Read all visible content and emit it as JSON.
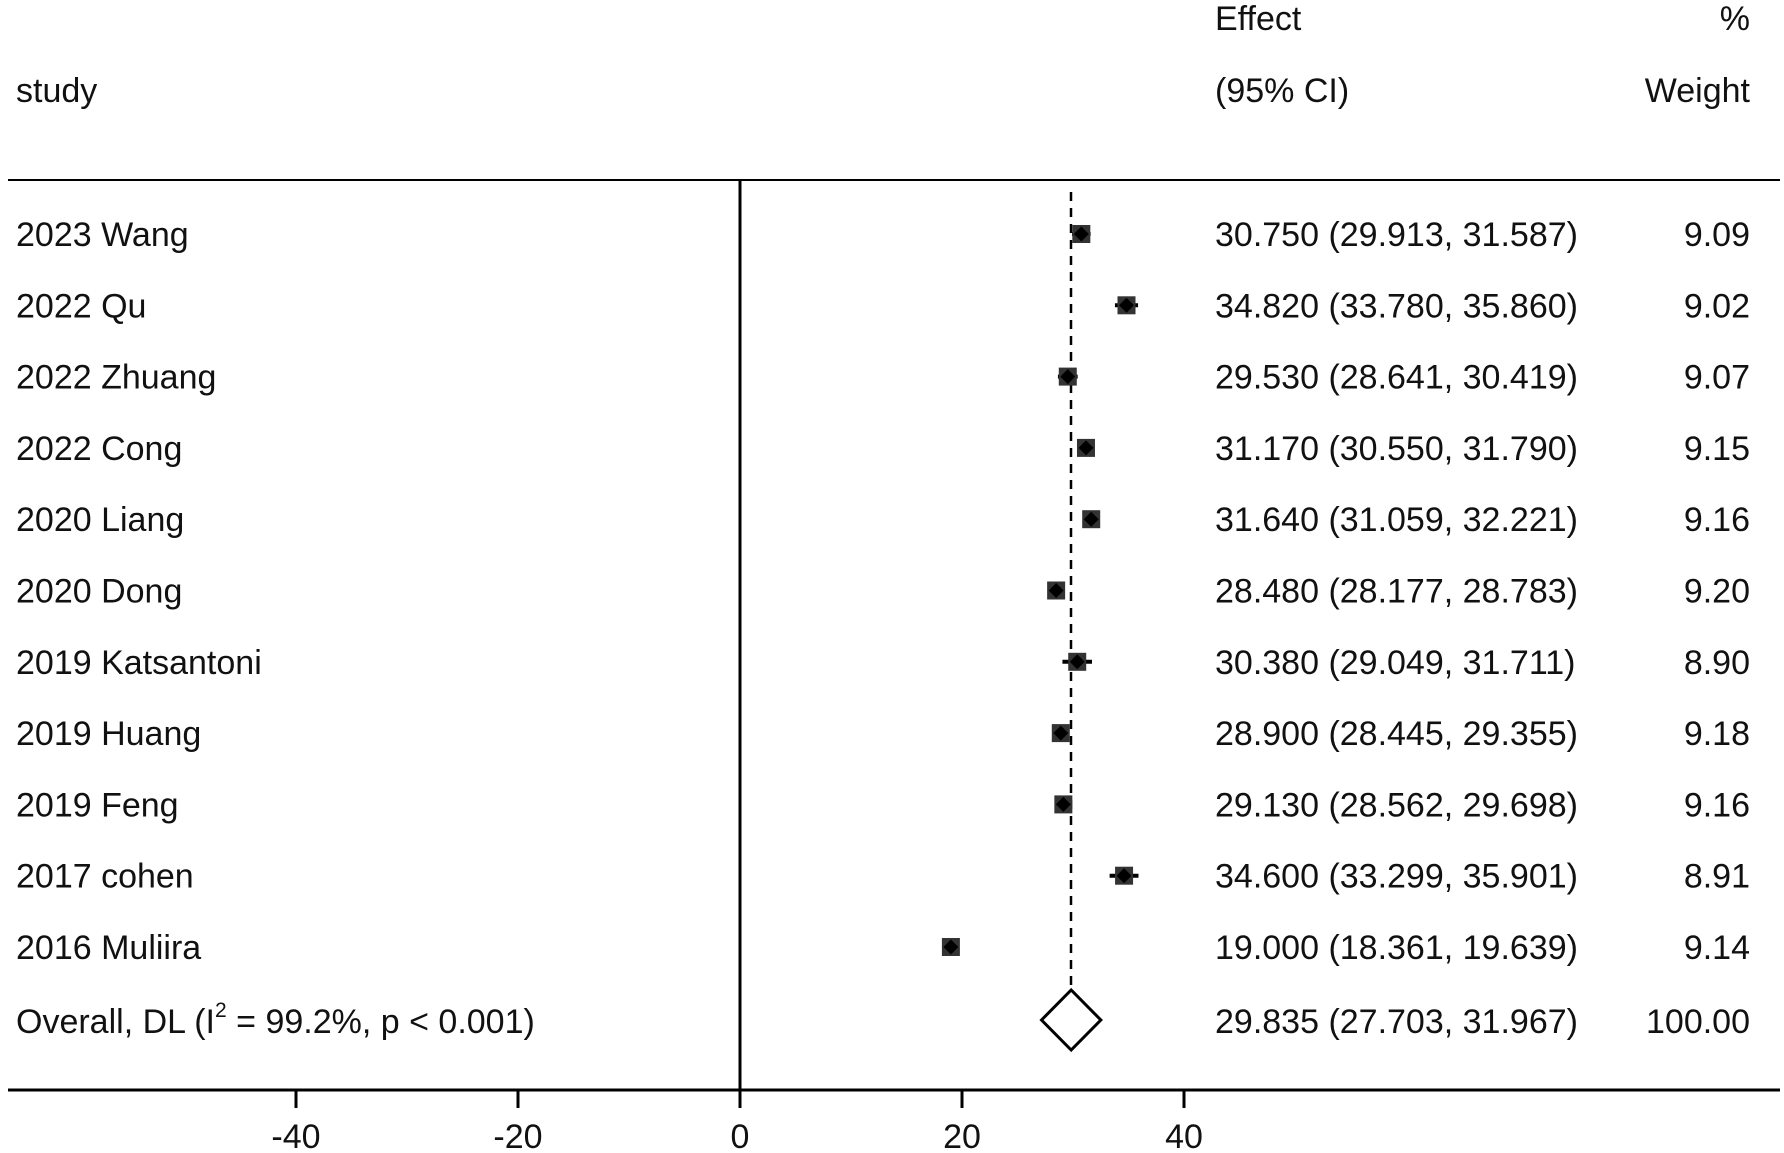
{
  "chart_data": {
    "type": "forest",
    "header": {
      "study": "study",
      "effect_line1": "Effect",
      "effect_line2": "(95% CI)",
      "weight_line1": "%",
      "weight_line2": "Weight"
    },
    "studies": [
      {
        "label": "2023 Wang",
        "effect": 30.75,
        "ci_low": 29.913,
        "ci_high": 31.587,
        "effect_text": "30.750 (29.913, 31.587)",
        "weight_text": "9.09",
        "weight": 9.09
      },
      {
        "label": "2022 Qu",
        "effect": 34.82,
        "ci_low": 33.78,
        "ci_high": 35.86,
        "effect_text": "34.820 (33.780, 35.860)",
        "weight_text": "9.02",
        "weight": 9.02
      },
      {
        "label": "2022 Zhuang",
        "effect": 29.53,
        "ci_low": 28.641,
        "ci_high": 30.419,
        "effect_text": "29.530 (28.641, 30.419)",
        "weight_text": "9.07",
        "weight": 9.07
      },
      {
        "label": "2022 Cong",
        "effect": 31.17,
        "ci_low": 30.55,
        "ci_high": 31.79,
        "effect_text": "31.170 (30.550, 31.790)",
        "weight_text": "9.15",
        "weight": 9.15
      },
      {
        "label": "2020 Liang",
        "effect": 31.64,
        "ci_low": 31.059,
        "ci_high": 32.221,
        "effect_text": "31.640 (31.059, 32.221)",
        "weight_text": "9.16",
        "weight": 9.16
      },
      {
        "label": "2020 Dong",
        "effect": 28.48,
        "ci_low": 28.177,
        "ci_high": 28.783,
        "effect_text": "28.480 (28.177, 28.783)",
        "weight_text": "9.20",
        "weight": 9.2
      },
      {
        "label": "2019 Katsantoni",
        "effect": 30.38,
        "ci_low": 29.049,
        "ci_high": 31.711,
        "effect_text": "30.380 (29.049, 31.711)",
        "weight_text": "8.90",
        "weight": 8.9
      },
      {
        "label": "2019 Huang",
        "effect": 28.9,
        "ci_low": 28.445,
        "ci_high": 29.355,
        "effect_text": "28.900 (28.445, 29.355)",
        "weight_text": "9.18",
        "weight": 9.18
      },
      {
        "label": "2019 Feng",
        "effect": 29.13,
        "ci_low": 28.562,
        "ci_high": 29.698,
        "effect_text": "29.130 (28.562, 29.698)",
        "weight_text": "9.16",
        "weight": 9.16
      },
      {
        "label": "2017 cohen",
        "effect": 34.6,
        "ci_low": 33.299,
        "ci_high": 35.901,
        "effect_text": "34.600 (33.299, 35.901)",
        "weight_text": "8.91",
        "weight": 8.91
      },
      {
        "label": "2016 Muliira",
        "effect": 19.0,
        "ci_low": 18.361,
        "ci_high": 19.639,
        "effect_text": "19.000 (18.361, 19.639)",
        "weight_text": "9.14",
        "weight": 9.14
      }
    ],
    "overall": {
      "label_prefix": "Overall, DL (I",
      "label_sup": "2",
      "label_suffix": " = 99.2%, p < 0.001)",
      "effect": 29.835,
      "ci_low": 27.703,
      "ci_high": 31.967,
      "effect_text": "29.835 (27.703, 31.967)",
      "weight_text": "100.00"
    },
    "x_ticks": [
      -40,
      -20,
      0,
      20,
      40
    ],
    "x_tick_labels": [
      "-40",
      "-20",
      "0",
      "20",
      "40"
    ],
    "null_line": 0,
    "reference_line": 29.835,
    "marker_color": "#333333",
    "line_color": "#000000"
  }
}
